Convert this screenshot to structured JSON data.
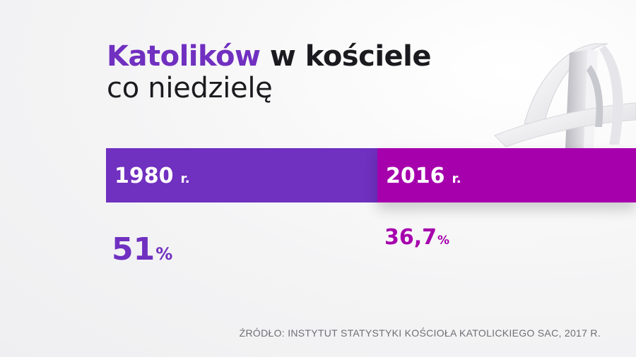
{
  "title": {
    "accent": "Katolików",
    "rest": " w kościele",
    "line2": "co niedzielę"
  },
  "colors": {
    "series_1980": "#7030c0",
    "series_2016": "#a600ad",
    "text": "#1b1b1f",
    "background": "#f4f4f5"
  },
  "decoration": {
    "icon": "stylized-cross-icon"
  },
  "chart_data": {
    "type": "bar",
    "categories": [
      "1980",
      "2016"
    ],
    "category_suffix": "r.",
    "values": [
      51,
      36.7
    ],
    "value_labels": [
      "51",
      "36,7"
    ],
    "unit": "%",
    "title": "Katolików w kościele co niedzielę"
  },
  "source": "ŹRÓDŁO:  INSTYTUT STATYSTYKI KOŚCIOŁA  KATOLICKIEGO SAC, 2017 R."
}
